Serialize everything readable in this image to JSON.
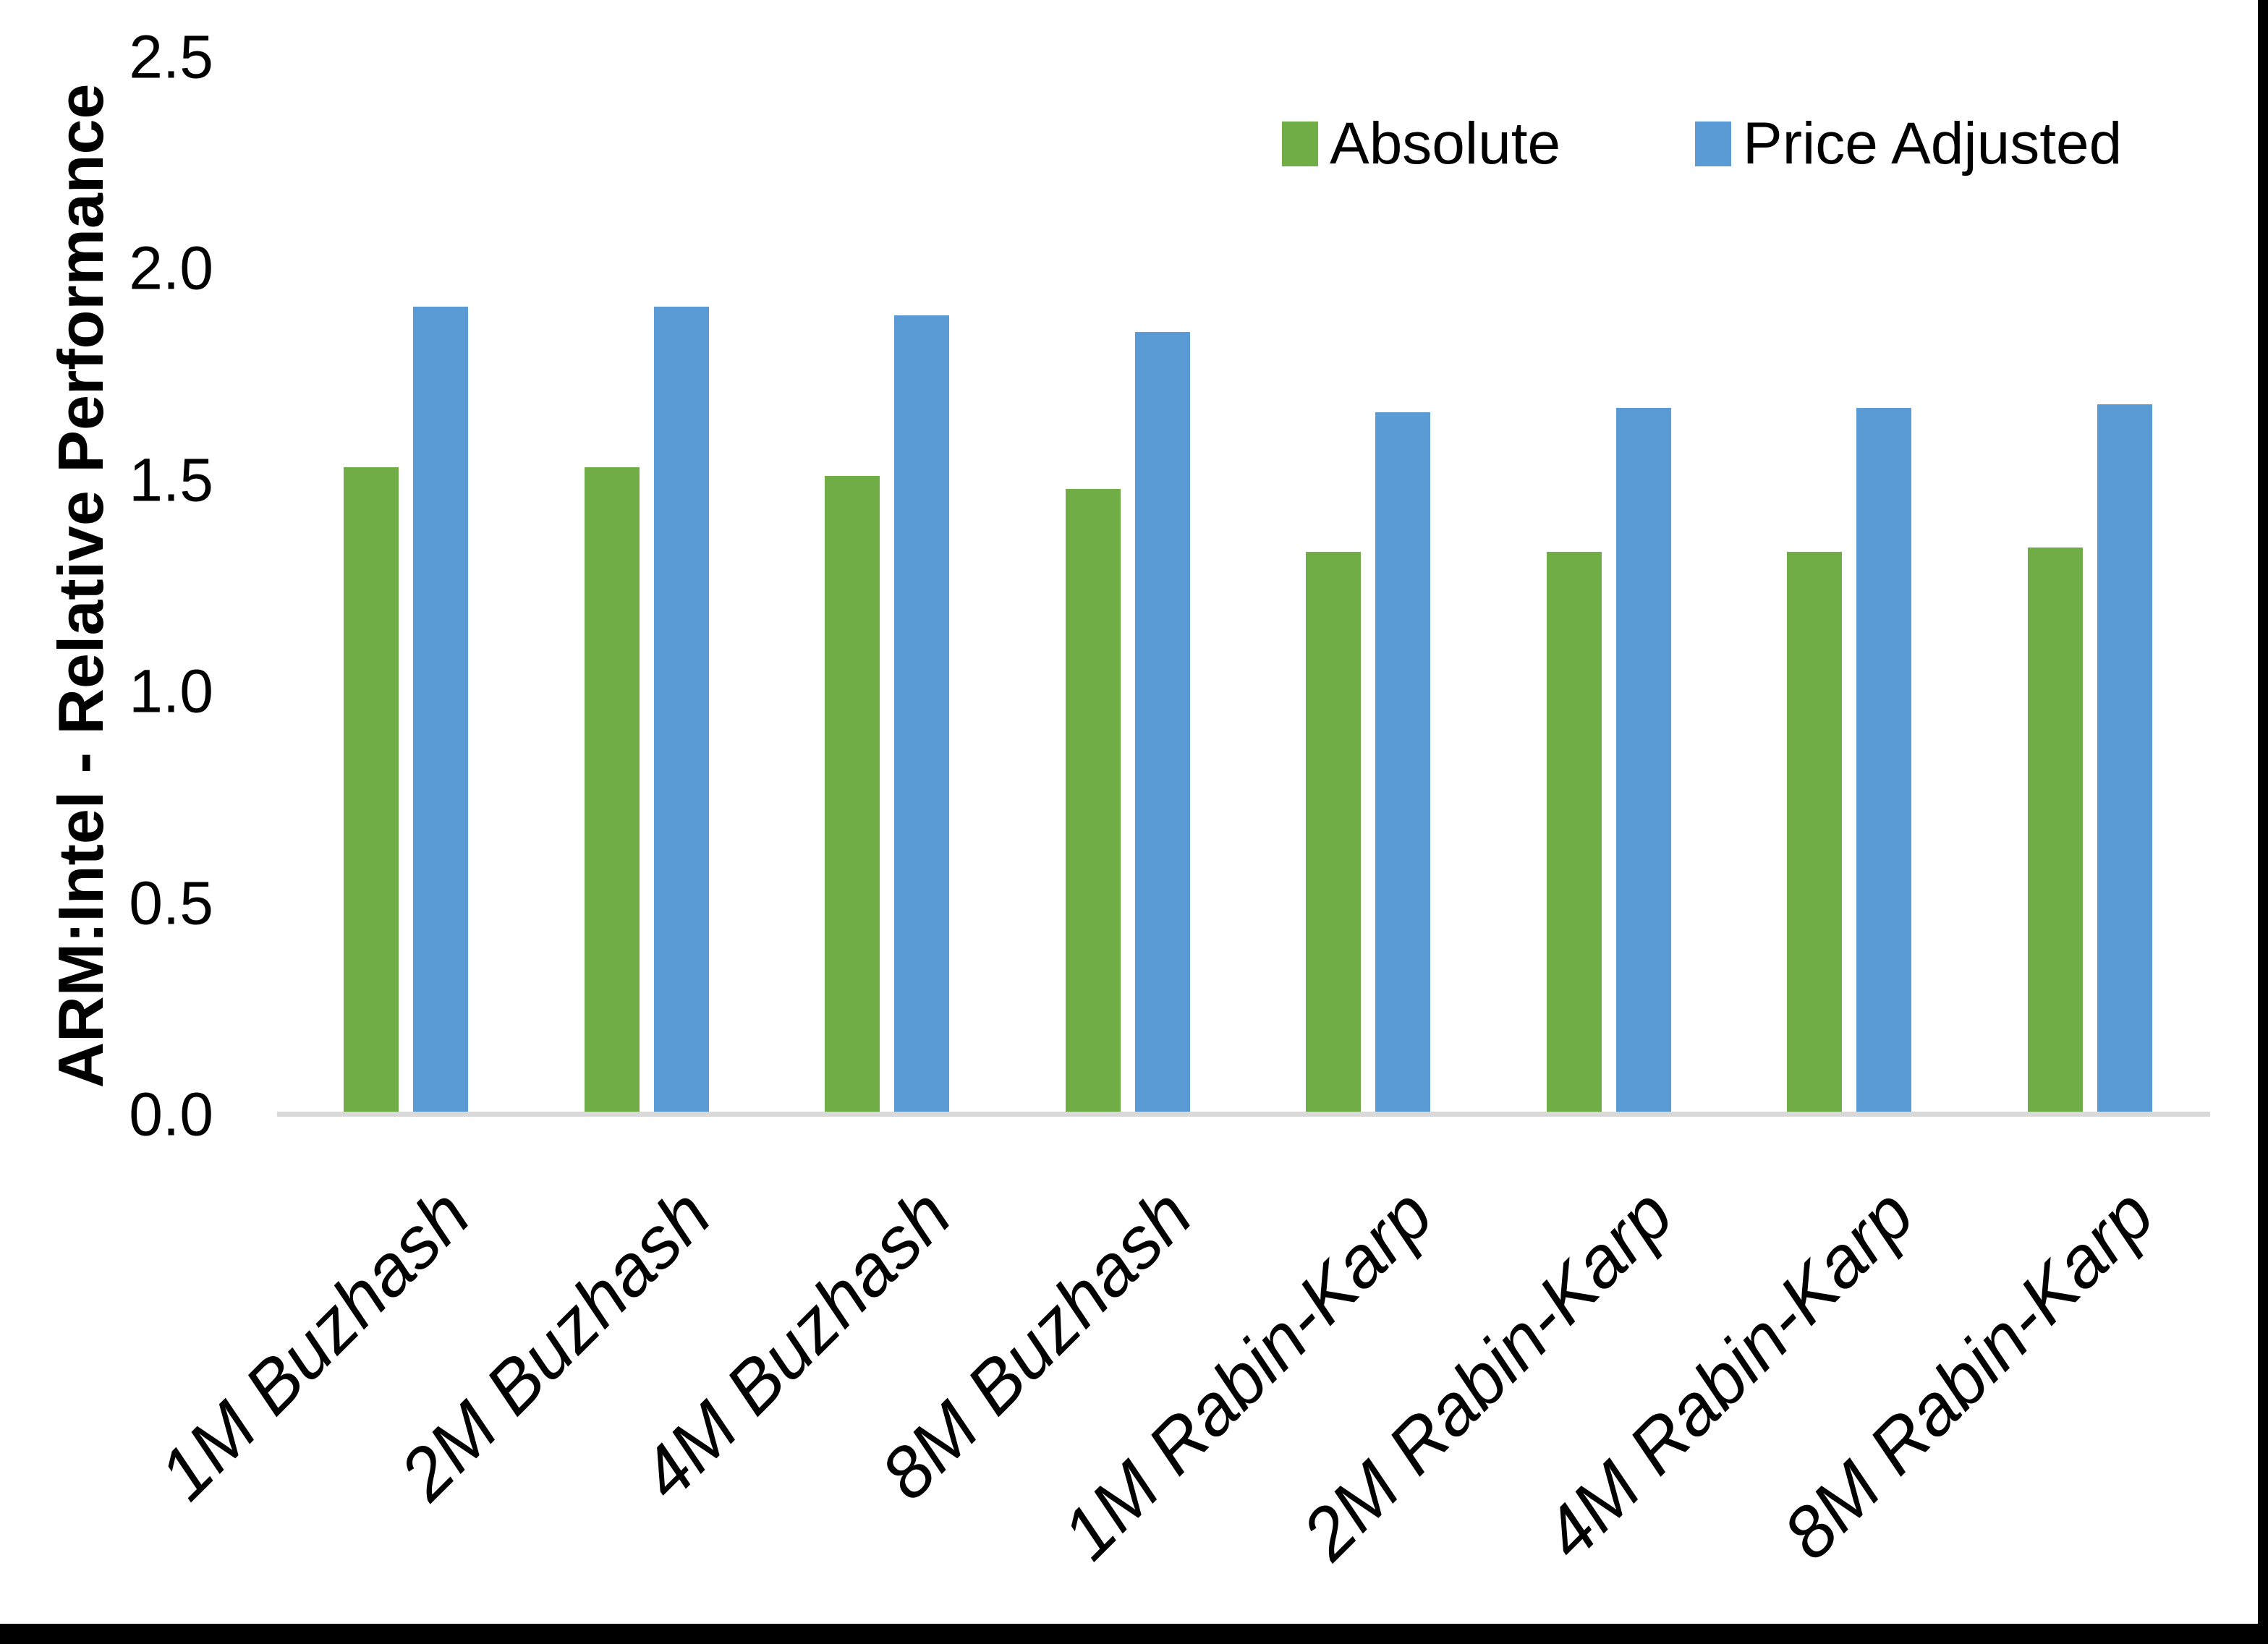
{
  "chart_data": {
    "type": "bar",
    "title": "",
    "xlabel": "",
    "ylabel": "ARM:Intel - Relative Performance",
    "ylim": [
      0,
      2.5
    ],
    "ytick_step": 0.5,
    "ytick_labels": [
      "0.0",
      "0.5",
      "1.0",
      "1.5",
      "2.0",
      "2.5"
    ],
    "grid": false,
    "legend_position": "top-right-inside",
    "categories": [
      "1M Buzhash",
      "2M Buzhash",
      "4M Buzhash",
      "8M Buzhash",
      "1M Rabin-Karp",
      "2M Rabin-Karp",
      "4M Rabin-Karp",
      "8M Rabin-Karp"
    ],
    "series": [
      {
        "name": "Absolute",
        "color": "#70AD47",
        "values": [
          1.53,
          1.53,
          1.51,
          1.48,
          1.33,
          1.33,
          1.33,
          1.34
        ]
      },
      {
        "name": "Price Adjusted",
        "color": "#5B9BD5",
        "values": [
          1.91,
          1.91,
          1.89,
          1.85,
          1.66,
          1.67,
          1.67,
          1.68
        ]
      }
    ]
  },
  "colors": {
    "background": "#FFFFFF",
    "axis_line": "#D9D9D9",
    "text": "#000000",
    "frame_border": "#000000"
  }
}
